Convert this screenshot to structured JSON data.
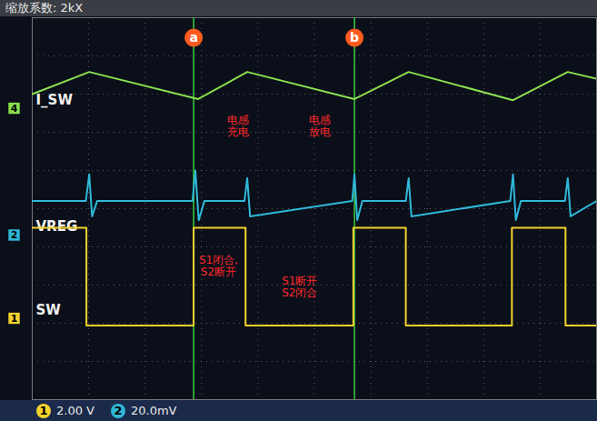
{
  "chart_data": {
    "type": "line",
    "title": "缩放系数: 2kX",
    "xlim": [
      0,
      100
    ],
    "ylim": [
      0,
      100
    ],
    "xticks": [
      0,
      10,
      20,
      30,
      40,
      50,
      60,
      70,
      80,
      90,
      100
    ],
    "yticks": [
      0,
      10,
      20,
      30,
      40,
      50,
      60,
      70,
      80,
      90,
      100
    ],
    "grid": true,
    "tick_labels": false,
    "series": [
      {
        "name": "I_SW",
        "channel": "4",
        "color": "#8be04e",
        "offset": 76.3,
        "x": [
          0,
          10.1,
          29.4,
          38.1,
          57.1,
          66.7,
          85.2,
          94.9,
          100
        ],
        "values": [
          80,
          85.8,
          78.7,
          85.8,
          78.7,
          85.8,
          78.4,
          85.8,
          84
        ]
      },
      {
        "name": "VREG",
        "channel": "2",
        "color": "#2fb8d8",
        "offset": 43.1,
        "x": [
          0,
          9.5,
          10.1,
          10.6,
          11.5,
          28.4,
          28.9,
          29.5,
          30.5,
          37.6,
          38.1,
          38.6,
          56.7,
          57.1,
          57.6,
          58.5,
          66.2,
          66.7,
          67.2,
          84.7,
          85.2,
          85.7,
          86.6,
          94.4,
          94.9,
          95.4,
          100
        ],
        "values": [
          52,
          52,
          59,
          48,
          52,
          52,
          60,
          47,
          52,
          52,
          58,
          48,
          52,
          59,
          47,
          52,
          52,
          58,
          48,
          52,
          59,
          47,
          52,
          52,
          58,
          48,
          52
        ]
      },
      {
        "name": "SW",
        "channel": "1",
        "color": "#f2d22e",
        "offset": 21.3,
        "x": [
          0,
          9.6,
          9.6,
          28.6,
          28.6,
          37.8,
          37.8,
          56.9,
          56.9,
          66.2,
          66.2,
          85.0,
          85.0,
          94.5,
          94.5,
          100
        ],
        "values": [
          45,
          45,
          19.4,
          19.4,
          45,
          45,
          19.4,
          19.4,
          45,
          45,
          19.4,
          19.4,
          45,
          45,
          19.4,
          19.4
        ]
      }
    ],
    "cursors": [
      {
        "label": "a",
        "x": 28.6
      },
      {
        "label": "b",
        "x": 57.1
      }
    ],
    "annotations": [
      {
        "text": "电感\n充电",
        "x": 36.5,
        "y": 71.8
      },
      {
        "text": "电感\n放电",
        "x": 51.0,
        "y": 71.8
      },
      {
        "text": "S1闭合,\nS2断开",
        "x": 33.0,
        "y": 35.1
      },
      {
        "text": "S1断开\nS2闭合",
        "x": 47.4,
        "y": 29.6
      }
    ],
    "channel_scales": [
      {
        "channel": "1",
        "text": "2.00 V"
      },
      {
        "channel": "2",
        "text": "20.0mV"
      }
    ]
  }
}
